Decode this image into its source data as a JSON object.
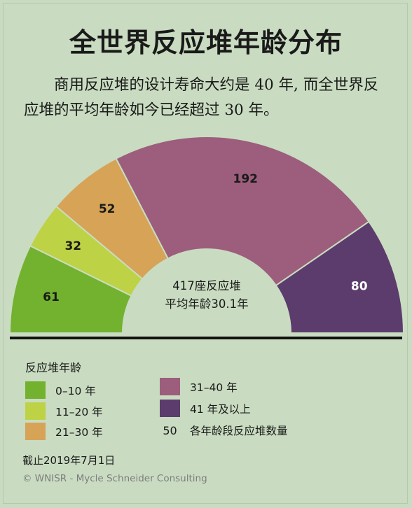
{
  "title": "全世界反应堆年龄分布",
  "subtitle": "商用反应堆的设计寿命大约是 40 年, 而全世界反应堆的平均年龄如今已经超过 30 年。",
  "chart_data": {
    "type": "pie",
    "variant": "semi-donut",
    "categories": [
      "0–10 年",
      "11–20 年",
      "21–30 年",
      "31–40 年",
      "41 年及以上"
    ],
    "values": [
      61,
      32,
      52,
      192,
      80
    ],
    "colors": [
      "#72b22f",
      "#bdd245",
      "#d6a357",
      "#9c5e7c",
      "#5c3c6c"
    ],
    "center_line1": "417座反应堆",
    "center_line2": "平均年龄30.1年",
    "total": 417,
    "average_age": 30.1
  },
  "legend": {
    "title": "反应堆年龄",
    "items": [
      {
        "label": "0–10 年",
        "color": "#72b22f"
      },
      {
        "label": "11–20 年",
        "color": "#bdd245"
      },
      {
        "label": "21–30 年",
        "color": "#d6a357"
      },
      {
        "label": "31–40 年",
        "color": "#9c5e7c"
      },
      {
        "label": "41 年及以上",
        "color": "#5c3c6c"
      }
    ],
    "number_key": "50",
    "number_key_label": "各年龄段反应堆数量"
  },
  "footnote_date": "截止2019年7月1日",
  "credit": "© WNISR - Mycle Schneider Consulting"
}
